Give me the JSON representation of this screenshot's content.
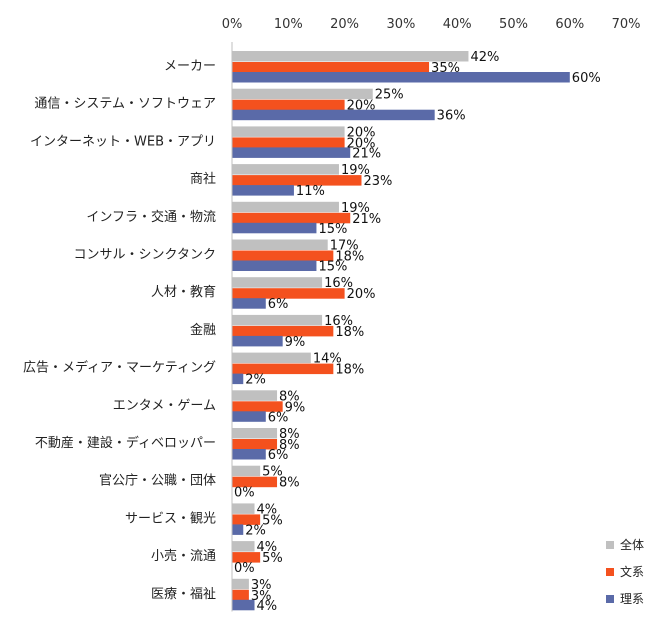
{
  "colors": {
    "全体": "#c0c0c0",
    "文系": "#f4511e",
    "理系": "#5a6aa8",
    "axis": "#bfbfbf"
  },
  "chart_data": {
    "type": "bar",
    "orientation": "horizontal",
    "title": "",
    "xlabel": "",
    "ylabel": "",
    "xlim": [
      0,
      70
    ],
    "x_ticks": [
      "0%",
      "10%",
      "20%",
      "30%",
      "40%",
      "50%",
      "60%",
      "70%"
    ],
    "x_tick_values": [
      0,
      10,
      20,
      30,
      40,
      50,
      60,
      70
    ],
    "tick_position": "top",
    "grid": false,
    "legend_position": "bottom-right",
    "unit": "%",
    "categories": [
      "メーカー",
      "通信・システム・ソフトウェア",
      "インターネット・WEB・アプリ",
      "商社",
      "インフラ・交通・物流",
      "コンサル・シンクタンク",
      "人材・教育",
      "金融",
      "広告・メディア・マーケティング",
      "エンタメ・ゲーム",
      "不動産・建設・ディベロッパー",
      "官公庁・公職・団体",
      "サービス・観光",
      "小売・流通",
      "医療・福祉"
    ],
    "series": [
      {
        "name": "全体",
        "values": [
          42,
          25,
          20,
          19,
          19,
          17,
          16,
          16,
          14,
          8,
          8,
          5,
          4,
          4,
          3
        ]
      },
      {
        "name": "文系",
        "values": [
          35,
          20,
          20,
          23,
          21,
          18,
          20,
          18,
          18,
          9,
          8,
          8,
          5,
          5,
          3
        ]
      },
      {
        "name": "理系",
        "values": [
          60,
          36,
          21,
          11,
          15,
          15,
          6,
          9,
          2,
          6,
          6,
          0,
          2,
          0,
          4
        ]
      }
    ]
  }
}
